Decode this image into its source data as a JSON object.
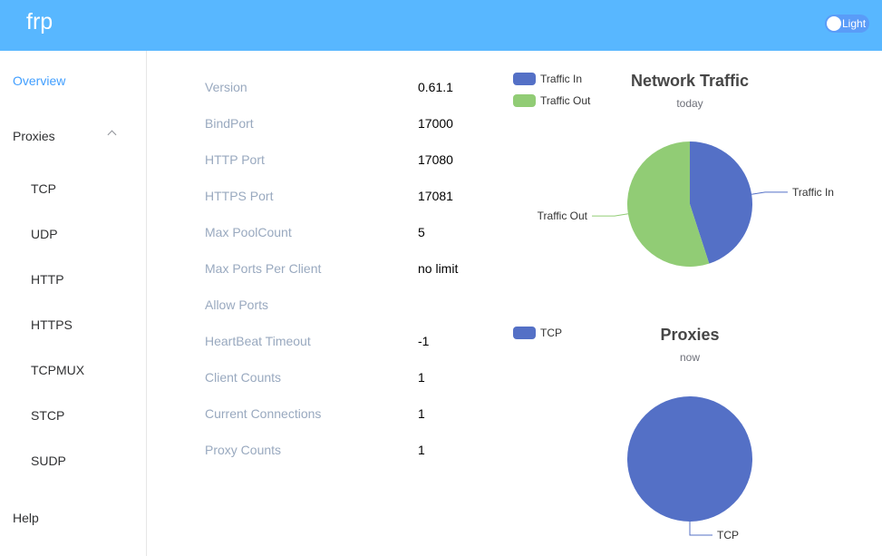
{
  "header": {
    "logo": "frp",
    "theme_toggle": "Light"
  },
  "sidebar": {
    "overview": "Overview",
    "proxies": "Proxies",
    "proxy_types": [
      "TCP",
      "UDP",
      "HTTP",
      "HTTPS",
      "TCPMUX",
      "STCP",
      "SUDP"
    ],
    "help": "Help"
  },
  "info": [
    {
      "label": "Version",
      "value": "0.61.1"
    },
    {
      "label": "BindPort",
      "value": "17000"
    },
    {
      "label": "HTTP Port",
      "value": "17080"
    },
    {
      "label": "HTTPS Port",
      "value": "17081"
    },
    {
      "label": "Max PoolCount",
      "value": "5"
    },
    {
      "label": "Max Ports Per Client",
      "value": "no limit"
    },
    {
      "label": "Allow Ports",
      "value": ""
    },
    {
      "label": "HeartBeat Timeout",
      "value": "-1"
    },
    {
      "label": "Client Counts",
      "value": "1"
    },
    {
      "label": "Current Connections",
      "value": "1"
    },
    {
      "label": "Proxy Counts",
      "value": "1"
    }
  ],
  "chart_data": [
    {
      "type": "pie",
      "title": "Network Traffic",
      "subtitle": "today",
      "legend": [
        "Traffic In",
        "Traffic Out"
      ],
      "legend_placement": "top-left",
      "categories": [
        "Traffic In",
        "Traffic Out"
      ],
      "values": [
        45,
        55
      ],
      "colors": [
        "#5470c6",
        "#91cc75"
      ]
    },
    {
      "type": "pie",
      "title": "Proxies",
      "subtitle": "now",
      "legend": [
        "TCP"
      ],
      "legend_placement": "top-left",
      "categories": [
        "TCP"
      ],
      "values": [
        1
      ],
      "colors": [
        "#5470c6"
      ]
    }
  ]
}
